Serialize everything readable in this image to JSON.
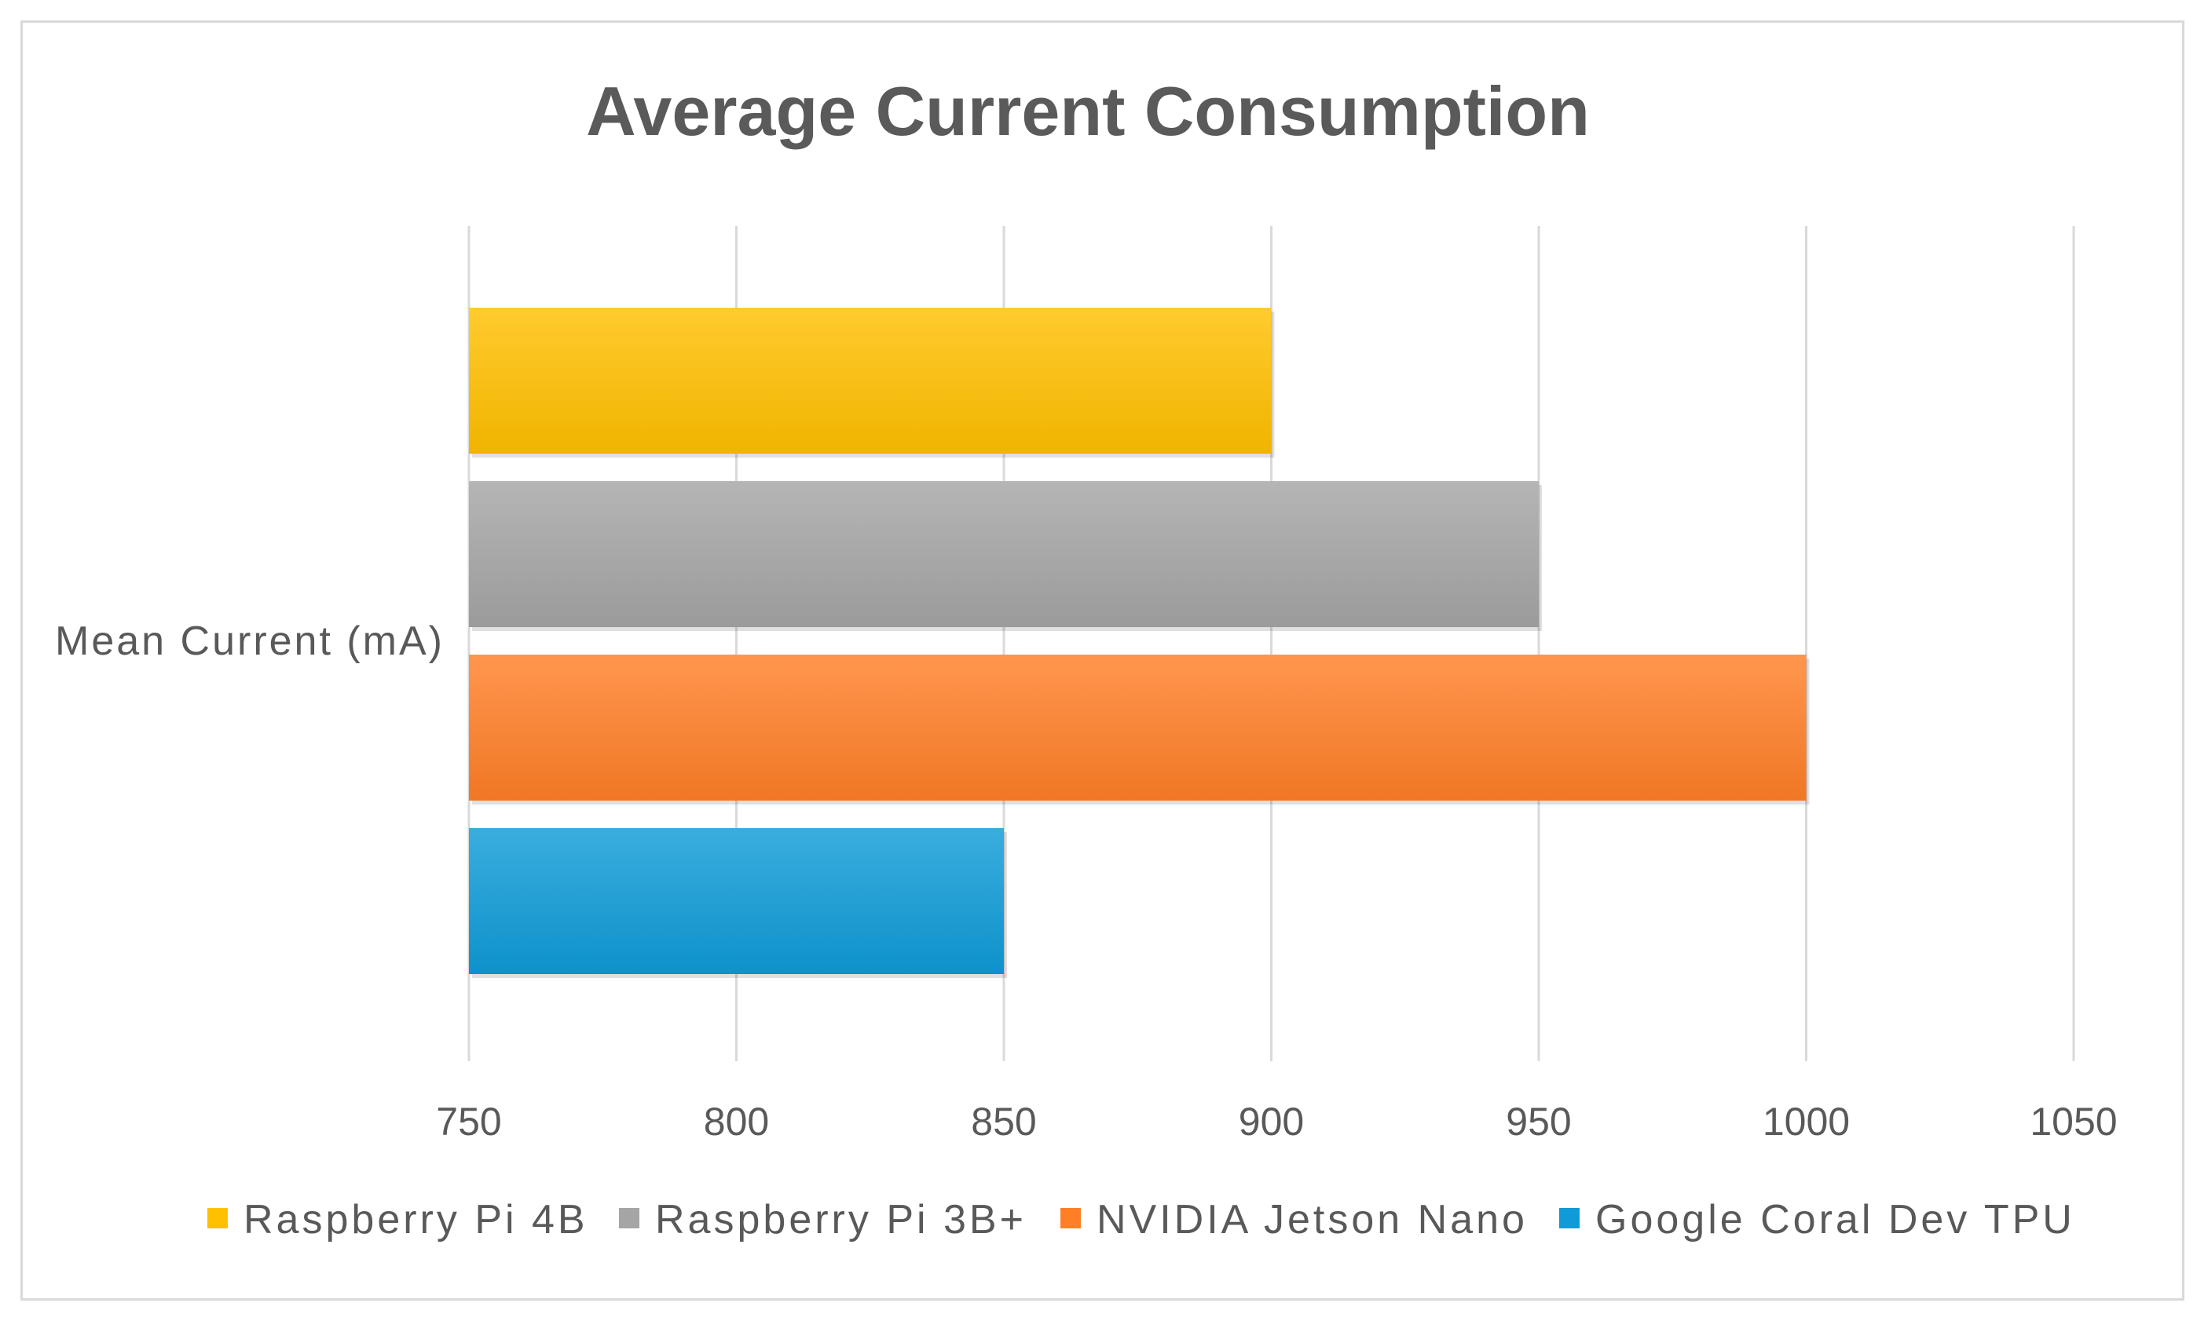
{
  "chart_data": {
    "type": "bar",
    "orientation": "horizontal",
    "title": "Average Current Consumption",
    "categories": [
      "Mean Current (mA)"
    ],
    "series": [
      {
        "name": "Raspberry Pi 4B",
        "values": [
          900
        ],
        "color": "#ffc000"
      },
      {
        "name": "Raspberry Pi 3B+",
        "values": [
          950
        ],
        "color": "#a5a5a5"
      },
      {
        "name": "NVIDIA Jetson Nano",
        "values": [
          1000
        ],
        "color": "#ff7f27"
      },
      {
        "name": "Google Coral Dev TPU",
        "values": [
          850
        ],
        "color": "#0f9bd7"
      }
    ],
    "xlim": [
      750,
      1050
    ],
    "xticks": [
      750,
      800,
      850,
      900,
      950,
      1000,
      1050
    ],
    "xlabel": "",
    "ylabel": "",
    "grid": true,
    "legend_position": "bottom"
  }
}
